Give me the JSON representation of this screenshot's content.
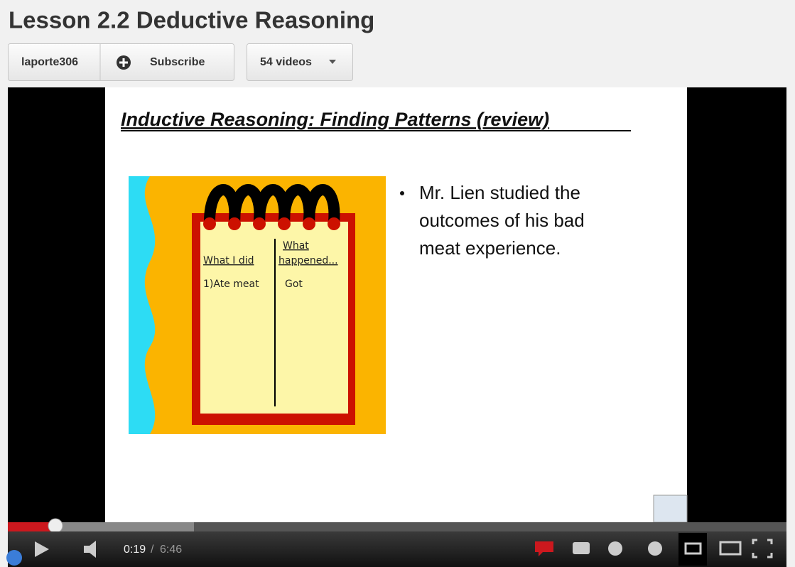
{
  "header": {
    "title": "Lesson 2.2 Deductive Reasoning",
    "channel": "laporte306",
    "subscribe": "Subscribe",
    "videos": "54 videos"
  },
  "slide": {
    "title": "Inductive Reasoning:  Finding Patterns (review)",
    "notepad": {
      "col1_header": "What I did",
      "col2_header": [
        "What",
        "happened..."
      ],
      "row1": [
        "1)Ate meat",
        "Got"
      ]
    },
    "bullet": [
      "Mr. Lien studied the",
      "outcomes of his bad",
      "meat experience."
    ]
  },
  "player": {
    "current_time": "0:19",
    "separator": "/",
    "duration": "6:46"
  }
}
